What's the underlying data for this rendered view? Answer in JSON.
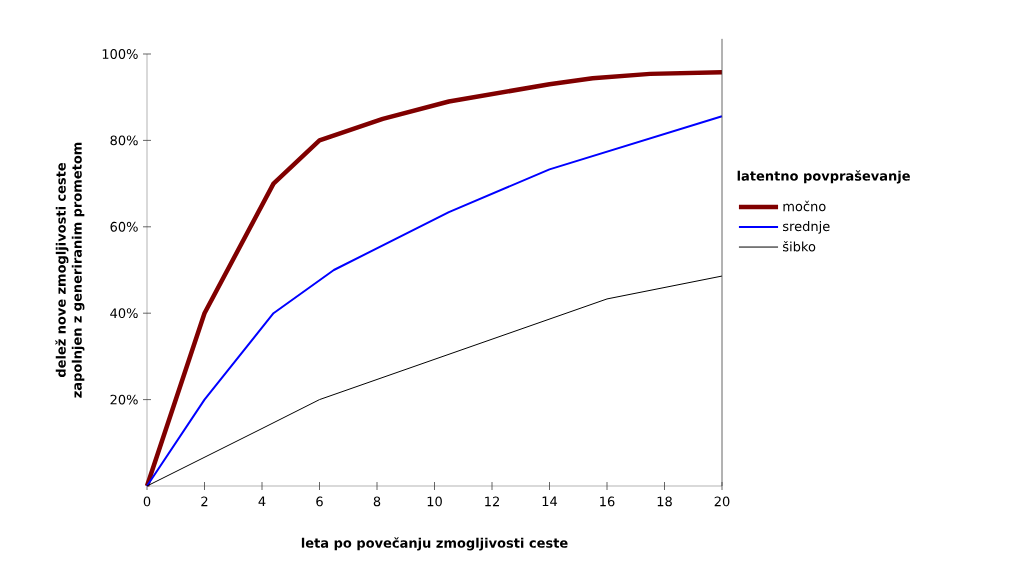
{
  "chart_data": {
    "type": "line",
    "xlabel": "leta po povečanju zmogljivosti ceste",
    "ylabel": "delež nove zmogljivosti ceste zapolnjen z generiranim prometom",
    "legend_title": "latentno povpraševanje",
    "legend": "right",
    "marker": "none",
    "line_style": "solid",
    "xlim": [
      0,
      20
    ],
    "ylim": [
      0,
      100
    ],
    "xticks": [
      0,
      2,
      4,
      6,
      8,
      10,
      12,
      14,
      16,
      18,
      20
    ],
    "yticks": [
      {
        "value": 20,
        "label": "20%"
      },
      {
        "value": 40,
        "label": "40%"
      },
      {
        "value": 60,
        "label": "60%"
      },
      {
        "value": 80,
        "label": "80%"
      },
      {
        "value": 100,
        "label": "100%"
      }
    ],
    "series": [
      {
        "name": "močno",
        "color": "#800000",
        "x": [
          0,
          2,
          4.4,
          6,
          8.2,
          10.5,
          14,
          15.5,
          17.5,
          20
        ],
        "values": [
          0,
          40,
          70,
          80,
          85,
          89,
          93,
          94.4,
          95.4,
          95.8
        ]
      },
      {
        "name": "srednje",
        "color": "#0000ff",
        "x": [
          0,
          2,
          4.4,
          6.5,
          10.5,
          14,
          20
        ],
        "values": [
          0,
          20,
          40,
          50,
          63.4,
          73.3,
          85.6
        ]
      },
      {
        "name": "šibko",
        "color": "#000000",
        "x": [
          0,
          4,
          6,
          16,
          20
        ],
        "values": [
          0,
          13.3,
          20,
          43.3,
          48.6
        ]
      }
    ]
  }
}
